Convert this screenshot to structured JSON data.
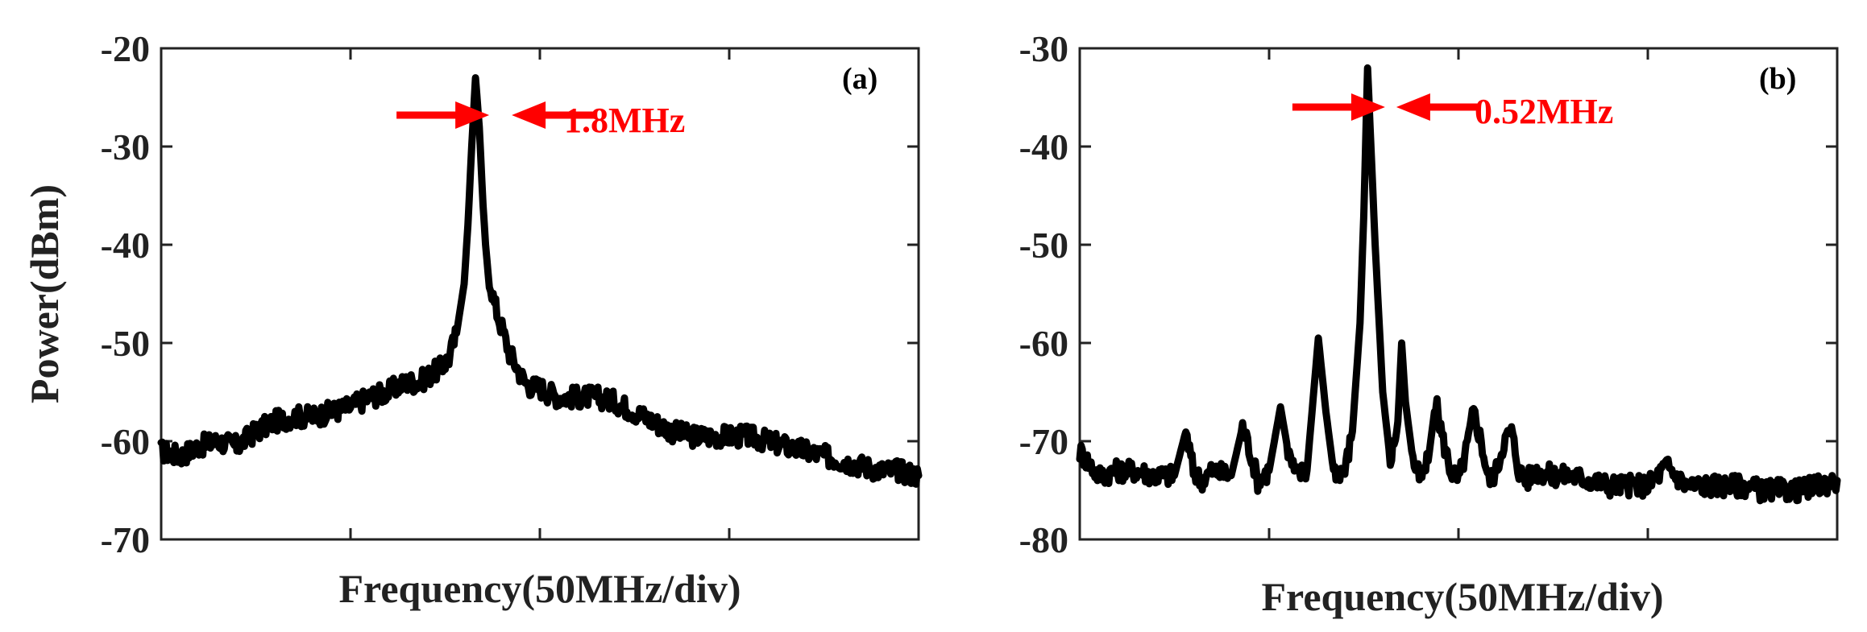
{
  "chart_data": [
    {
      "type": "line",
      "panel_label": "(a)",
      "xlabel": "Frequency(50MHz/div)",
      "ylabel": "Power(dBm)",
      "ylim": [
        -70,
        -20
      ],
      "yticks": [
        -20,
        -30,
        -40,
        -50,
        -60,
        -70
      ],
      "ytick_labels": [
        "-20",
        "-30",
        "-40",
        "-50",
        "-60",
        "-70"
      ],
      "xlim": [
        0,
        200
      ],
      "xticks": [
        0,
        50,
        100,
        150,
        200
      ],
      "grid": false,
      "annotation": {
        "text": "1.8MHz",
        "color": "#ff0000",
        "x": 83,
        "y": -27
      },
      "series": [
        {
          "color": "#000000",
          "x": [
            0,
            5,
            10,
            15,
            20,
            25,
            30,
            35,
            40,
            45,
            50,
            55,
            60,
            62,
            65,
            68,
            70,
            72,
            74,
            76,
            78,
            80,
            81,
            82,
            83,
            84,
            85,
            86,
            88,
            90,
            92,
            94,
            96,
            98,
            100,
            102,
            105,
            110,
            115,
            120,
            125,
            130,
            135,
            140,
            145,
            150,
            155,
            160,
            165,
            170,
            175,
            180,
            185,
            190,
            195,
            200
          ],
          "y": [
            -61,
            -61.5,
            -60.5,
            -60,
            -60.5,
            -59,
            -58,
            -57.5,
            -57.5,
            -57,
            -56.5,
            -55.5,
            -55,
            -54.5,
            -54,
            -54,
            -53.5,
            -53,
            -52.5,
            -51.5,
            -49,
            -44,
            -38,
            -30,
            -23,
            -28,
            -36,
            -42,
            -46,
            -48.5,
            -51,
            -52.5,
            -54,
            -54.5,
            -54.5,
            -55,
            -55.5,
            -55.5,
            -55.5,
            -56,
            -57,
            -58,
            -59,
            -59.5,
            -59.5,
            -59.5,
            -59.5,
            -60,
            -60.5,
            -61,
            -61.5,
            -62,
            -62.5,
            -63,
            -63,
            -63.5
          ]
        }
      ]
    },
    {
      "type": "line",
      "panel_label": "(b)",
      "xlabel": "Frequency(50MHz/div)",
      "ylabel": "",
      "ylim": [
        -80,
        -30
      ],
      "yticks": [
        -30,
        -40,
        -50,
        -60,
        -70,
        -80
      ],
      "ytick_labels": [
        "-30",
        "-40",
        "-50",
        "-60",
        "-70",
        "-80"
      ],
      "xlim": [
        0,
        200
      ],
      "xticks": [
        0,
        50,
        100,
        150,
        200
      ],
      "grid": false,
      "annotation": {
        "text": "0.52MHz",
        "color": "#ff0000",
        "x": 77,
        "y": -36
      },
      "series": [
        {
          "color": "#000000",
          "x": [
            0,
            5,
            10,
            15,
            20,
            25,
            28,
            30,
            32,
            35,
            40,
            43,
            45,
            47,
            50,
            53,
            55,
            57,
            60,
            63,
            65,
            67,
            70,
            72,
            74,
            75,
            76,
            78,
            80,
            82,
            84,
            85,
            86,
            88,
            90,
            92,
            94,
            96,
            98,
            100,
            102,
            104,
            106,
            108,
            110,
            112,
            114,
            116,
            118,
            120,
            125,
            130,
            135,
            140,
            145,
            150,
            155,
            160,
            165,
            170,
            175,
            180,
            185,
            190,
            195,
            200
          ],
          "y": [
            -71,
            -73.5,
            -73,
            -73,
            -73.5,
            -73.5,
            -69,
            -73,
            -74,
            -73,
            -73.5,
            -68.5,
            -71,
            -74,
            -73,
            -66.5,
            -71,
            -73.5,
            -73,
            -59.5,
            -67,
            -73,
            -73,
            -69,
            -58,
            -47,
            -32,
            -50,
            -65,
            -72,
            -68,
            -60,
            -66,
            -72,
            -74,
            -72,
            -66,
            -70,
            -73,
            -74,
            -71,
            -67,
            -70,
            -74,
            -73,
            -70,
            -69,
            -73,
            -74,
            -73,
            -73.5,
            -73.5,
            -74,
            -74.5,
            -74.5,
            -74.5,
            -72.5,
            -74.5,
            -74.5,
            -74.5,
            -74.5,
            -75,
            -75,
            -75,
            -74.5,
            -74
          ]
        }
      ]
    }
  ]
}
